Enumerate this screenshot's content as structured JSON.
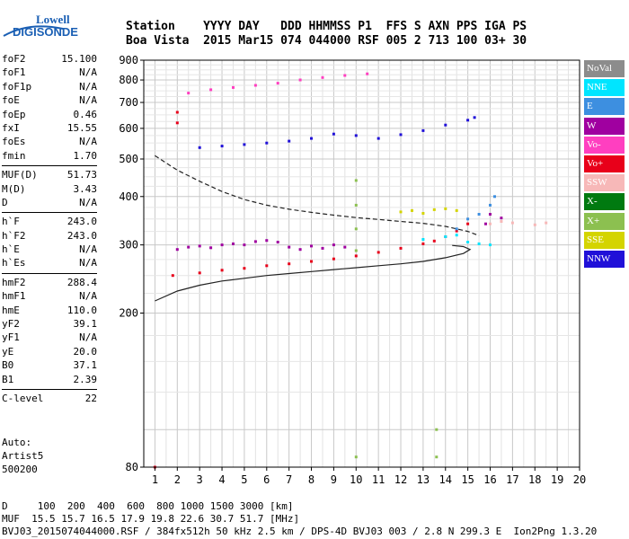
{
  "logo": {
    "line1": "Lowell",
    "line2": "DIGISONDE"
  },
  "header": {
    "row1": "Station    YYYY DAY   DDD HHMMSS P1  FFS S AXN PPS IGA PS",
    "row2": "Boa Vista  2015 Mar15 074 044000 RSF 005 2 713 100 03+ 30"
  },
  "params": [
    {
      "k": "foF2",
      "v": "15.100"
    },
    {
      "k": "foF1",
      "v": "N/A"
    },
    {
      "k": "foF1p",
      "v": "N/A"
    },
    {
      "k": "foE",
      "v": "N/A"
    },
    {
      "k": "foEp",
      "v": "0.46"
    },
    {
      "k": "fxI",
      "v": "15.55"
    },
    {
      "k": "foEs",
      "v": "N/A"
    },
    {
      "k": "fmin",
      "v": "1.70"
    },
    {
      "sep": true
    },
    {
      "k": "MUF(D)",
      "v": "51.73"
    },
    {
      "k": "M(D)",
      "v": "3.43"
    },
    {
      "k": "D",
      "v": "N/A"
    },
    {
      "sep": true
    },
    {
      "k": "h`F",
      "v": "243.0"
    },
    {
      "k": "h`F2",
      "v": "243.0"
    },
    {
      "k": "h`E",
      "v": "N/A"
    },
    {
      "k": "h`Es",
      "v": "N/A"
    },
    {
      "sep": true
    },
    {
      "k": "hmF2",
      "v": "288.4"
    },
    {
      "k": "hmF1",
      "v": "N/A"
    },
    {
      "k": "hmE",
      "v": "110.0"
    },
    {
      "k": "yF2",
      "v": "39.1"
    },
    {
      "k": "yF1",
      "v": "N/A"
    },
    {
      "k": "yE",
      "v": "20.0"
    },
    {
      "k": "B0",
      "v": "37.1"
    },
    {
      "k": "B1",
      "v": "2.39"
    },
    {
      "sep": true
    },
    {
      "k": "C-level",
      "v": "22"
    }
  ],
  "extra": {
    "line1": "Auto:",
    "line2": "Artist5",
    "line3": "500200"
  },
  "footer": {
    "row1": "D     100  200  400  600  800 1000 1500 3000 [km]",
    "row2": "MUF  15.5 15.7 16.5 17.9 19.8 22.6 30.7 51.7 [MHz]",
    "row3": "BVJ03_2015074044000.RSF / 384fx512h 50 kHz 2.5 km / DPS-4D BVJ03 003 / 2.8 N 299.3 E  Ion2Png 1.3.20"
  },
  "legend": [
    {
      "label": "NoVal",
      "color": "#8c8c8c"
    },
    {
      "label": "NNE",
      "color": "#00e5ff"
    },
    {
      "label": "E",
      "color": "#3d8fe0"
    },
    {
      "label": "W",
      "color": "#a000a0"
    },
    {
      "label": "Vo-",
      "color": "#ff3fc0"
    },
    {
      "label": "Vo+",
      "color": "#e8001a"
    },
    {
      "label": "SSW",
      "color": "#f7b8b8"
    },
    {
      "label": "X-",
      "color": "#007a10"
    },
    {
      "label": "X+",
      "color": "#8cc050"
    },
    {
      "label": "SSE",
      "color": "#d4d400"
    },
    {
      "label": "NNW",
      "color": "#2010d8"
    }
  ],
  "chart_data": {
    "type": "scatter",
    "title": "",
    "xlabel": "",
    "ylabel": "",
    "xlim": [
      0.5,
      20
    ],
    "ylim": [
      80,
      900
    ],
    "yscale": "log",
    "x_ticks": [
      1,
      2,
      3,
      4,
      5,
      6,
      7,
      8,
      9,
      10,
      11,
      12,
      13,
      14,
      15,
      16,
      17,
      18,
      19,
      20
    ],
    "y_ticks": [
      80,
      200,
      300,
      400,
      500,
      600,
      700,
      800,
      900
    ],
    "grid": true,
    "legend_position": "right",
    "series": [
      {
        "color_key": "Vo+",
        "points": [
          [
            1.8,
            250
          ],
          [
            3,
            254
          ],
          [
            4,
            258
          ],
          [
            5,
            261
          ],
          [
            6,
            265
          ],
          [
            7,
            268
          ],
          [
            8,
            272
          ],
          [
            9,
            276
          ],
          [
            10,
            281
          ],
          [
            11,
            287
          ],
          [
            12,
            294
          ],
          [
            13,
            302
          ],
          [
            13.5,
            307
          ],
          [
            14,
            315
          ],
          [
            14.5,
            326
          ],
          [
            15,
            340
          ]
        ]
      },
      {
        "color_key": "W",
        "points": [
          [
            2,
            292
          ],
          [
            2.5,
            296
          ],
          [
            3,
            298
          ],
          [
            3.5,
            295
          ],
          [
            4,
            300
          ],
          [
            4.5,
            302
          ],
          [
            5,
            300
          ],
          [
            5.5,
            306
          ],
          [
            6,
            308
          ],
          [
            6.5,
            305
          ],
          [
            7,
            296
          ],
          [
            7.5,
            292
          ],
          [
            8,
            298
          ],
          [
            8.5,
            294
          ],
          [
            9,
            300
          ],
          [
            9.5,
            296
          ],
          [
            16,
            360
          ],
          [
            16.5,
            352
          ],
          [
            15.8,
            340
          ]
        ]
      },
      {
        "color_key": "NNW",
        "points": [
          [
            3,
            535
          ],
          [
            4,
            540
          ],
          [
            5,
            545
          ],
          [
            6,
            550
          ],
          [
            7,
            556
          ],
          [
            8,
            565
          ],
          [
            9,
            580
          ],
          [
            10,
            575
          ],
          [
            11,
            565
          ],
          [
            12,
            578
          ],
          [
            13,
            592
          ],
          [
            14,
            612
          ],
          [
            15,
            630
          ],
          [
            15.3,
            640
          ]
        ]
      },
      {
        "color_key": "Vo-",
        "points": [
          [
            2.5,
            740
          ],
          [
            3.5,
            755
          ],
          [
            4.5,
            765
          ],
          [
            5.5,
            775
          ],
          [
            6.5,
            785
          ],
          [
            7.5,
            800
          ],
          [
            8.5,
            812
          ],
          [
            9.5,
            822
          ],
          [
            10.5,
            830
          ]
        ]
      },
      {
        "color_key": "SSE",
        "points": [
          [
            12,
            365
          ],
          [
            12.5,
            368
          ],
          [
            13,
            362
          ],
          [
            13.5,
            370
          ],
          [
            14,
            372
          ],
          [
            14.5,
            368
          ]
        ]
      },
      {
        "color_key": "NNE",
        "points": [
          [
            13,
            310
          ],
          [
            14,
            315
          ],
          [
            14.5,
            318
          ],
          [
            15,
            305
          ],
          [
            15.5,
            302
          ],
          [
            16,
            300
          ]
        ]
      },
      {
        "color_key": "E",
        "points": [
          [
            15.5,
            360
          ],
          [
            16,
            380
          ],
          [
            16.2,
            400
          ],
          [
            14.5,
            330
          ],
          [
            15,
            350
          ]
        ]
      },
      {
        "color_key": "SSW",
        "points": [
          [
            16,
            340
          ],
          [
            16.5,
            345
          ],
          [
            17,
            342
          ],
          [
            18,
            338
          ],
          [
            18.5,
            342
          ]
        ]
      },
      {
        "color_key": "X+",
        "points": [
          [
            10,
            440
          ],
          [
            10,
            380
          ],
          [
            10,
            330
          ],
          [
            10,
            290
          ],
          [
            10,
            85
          ],
          [
            13.6,
            85
          ],
          [
            13.6,
            100
          ]
        ]
      },
      {
        "color_key": "Vo+",
        "points": [
          [
            1,
            80
          ],
          [
            2,
            660
          ],
          [
            2,
            620
          ]
        ]
      }
    ],
    "profile_curve_dashed": [
      [
        1,
        510
      ],
      [
        2,
        468
      ],
      [
        3,
        438
      ],
      [
        4,
        412
      ],
      [
        5,
        393
      ],
      [
        6,
        380
      ],
      [
        7,
        371
      ],
      [
        8,
        364
      ],
      [
        9,
        358
      ],
      [
        10,
        353
      ],
      [
        11,
        349
      ],
      [
        12,
        345
      ],
      [
        13,
        341
      ],
      [
        14,
        335
      ],
      [
        15,
        325
      ],
      [
        15.5,
        317
      ]
    ],
    "profile_curve_solid": [
      [
        1,
        215
      ],
      [
        2,
        228
      ],
      [
        3,
        236
      ],
      [
        4,
        242
      ],
      [
        5,
        246
      ],
      [
        6,
        250
      ],
      [
        7,
        253
      ],
      [
        8,
        256
      ],
      [
        9,
        259
      ],
      [
        10,
        262
      ],
      [
        11,
        265
      ],
      [
        12,
        268
      ],
      [
        13,
        272
      ],
      [
        14,
        278
      ],
      [
        14.8,
        285
      ],
      [
        15.1,
        292
      ],
      [
        14.8,
        297
      ],
      [
        14.3,
        299
      ]
    ]
  }
}
